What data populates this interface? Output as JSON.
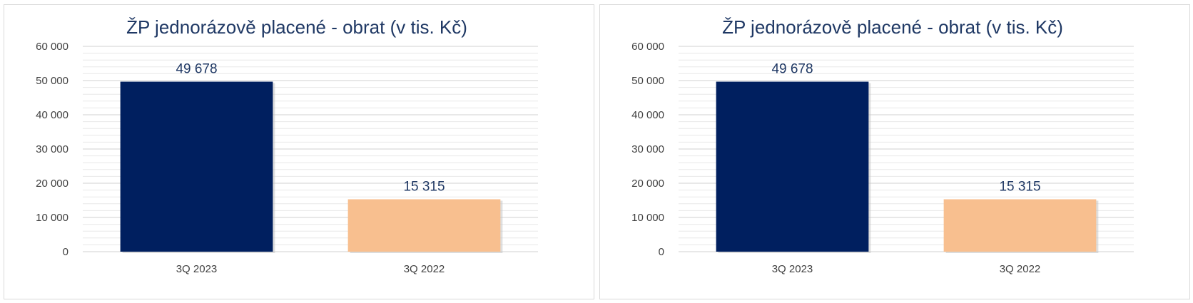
{
  "chart_data": [
    {
      "type": "bar",
      "title": "ŽP jednorázově placené   - obrat (v tis. Kč)",
      "categories": [
        "3Q 2023",
        "3Q 2022"
      ],
      "values": [
        49678,
        15315
      ],
      "data_labels": [
        "49 678",
        "15 315"
      ],
      "bar_colors": [
        "#001f5f",
        "#f8bf8f"
      ],
      "ylim": [
        0,
        60000
      ],
      "yticks": [
        0,
        10000,
        20000,
        30000,
        40000,
        50000,
        60000
      ],
      "ytick_labels": [
        "0",
        "10 000",
        "20 000",
        "30 000",
        "40 000",
        "50 000",
        "60 000"
      ],
      "xlabel": "",
      "ylabel": "",
      "grid": true,
      "legend": "none"
    },
    {
      "type": "bar",
      "title": "ŽP jednorázově placené   - obrat (v tis. Kč)",
      "categories": [
        "3Q 2023",
        "3Q 2022"
      ],
      "values": [
        49678,
        15315
      ],
      "data_labels": [
        "49 678",
        "15 315"
      ],
      "bar_colors": [
        "#001f5f",
        "#f8bf8f"
      ],
      "ylim": [
        0,
        60000
      ],
      "yticks": [
        0,
        10000,
        20000,
        30000,
        40000,
        50000,
        60000
      ],
      "ytick_labels": [
        "0",
        "10 000",
        "20 000",
        "30 000",
        "40 000",
        "50 000",
        "60 000"
      ],
      "xlabel": "",
      "ylabel": "",
      "grid": true,
      "legend": "none"
    }
  ]
}
